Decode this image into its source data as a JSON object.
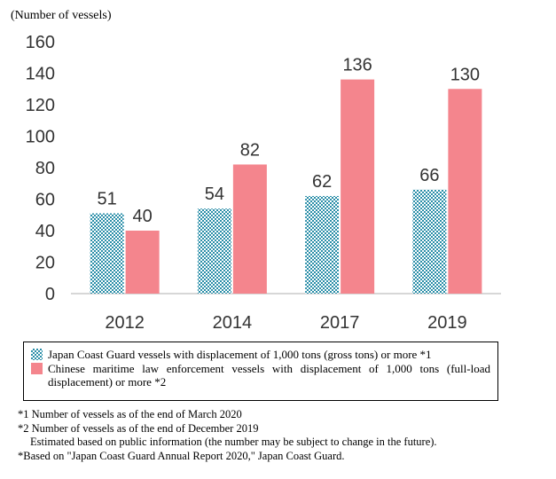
{
  "chart_data": {
    "type": "bar",
    "unit_label": "(Number of vessels)",
    "categories": [
      "2012",
      "2014",
      "2017",
      "2019"
    ],
    "series": [
      {
        "name": "Japan Coast Guard vessels with displacement of 1,000 tons (gross tons) or more *1",
        "values": [
          51,
          54,
          62,
          66
        ],
        "color": "#2a8ea8",
        "pattern": "checker"
      },
      {
        "name": "Chinese maritime law enforcement vessels with displacement of 1,000 tons (full-load displacement) or more *2",
        "values": [
          40,
          82,
          136,
          130
        ],
        "color": "#f4858d",
        "pattern": "solid"
      }
    ],
    "ylim": [
      0,
      160
    ],
    "yticks": [
      "0",
      "20",
      "40",
      "60",
      "80",
      "100",
      "120",
      "140",
      "160"
    ],
    "grid": false,
    "legend_position": "bottom"
  },
  "legend": {
    "jcg_label": "Japan Coast Guard vessels with displacement of 1,000 tons (gross tons) or more *1",
    "cn_label": "Chinese maritime law enforcement vessels with displacement of 1,000 tons (full-load displacement) or more *2"
  },
  "notes": {
    "note1": "*1 Number of vessels as of the end of March 2020",
    "note2": "*2 Number of vessels as of the end of December 2019",
    "note2_detail": "Estimated based on public information (the number may be subject to change in the future).",
    "source": "*Based on \"Japan Coast Guard Annual Report 2020,\" Japan Coast Guard."
  }
}
